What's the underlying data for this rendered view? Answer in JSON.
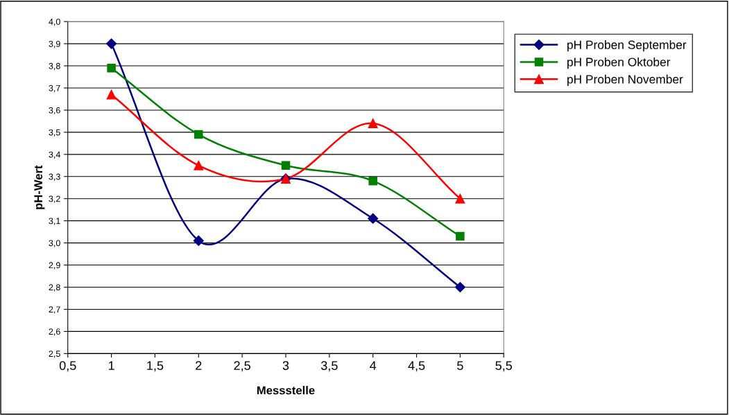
{
  "chart_data": {
    "type": "line",
    "xlabel": "Messstelle",
    "ylabel": "pH-Wert",
    "x": [
      1,
      2,
      3,
      4,
      5
    ],
    "series": [
      {
        "name": "pH Proben September",
        "color": "#000080",
        "marker": "diamond",
        "values": [
          3.9,
          3.01,
          3.29,
          3.11,
          2.8
        ]
      },
      {
        "name": "pH Proben Oktober",
        "color": "#008000",
        "marker": "square",
        "values": [
          3.79,
          3.49,
          3.35,
          3.28,
          3.03
        ]
      },
      {
        "name": "pH Proben November",
        "color": "#ff0000",
        "marker": "triangle",
        "values": [
          3.67,
          3.35,
          3.29,
          3.54,
          3.2
        ]
      }
    ],
    "xlim": [
      0.5,
      5.5
    ],
    "xticks": [
      {
        "value": 0.5,
        "label": "0,5"
      },
      1,
      {
        "value": 1.5,
        "label": "1,5"
      },
      2,
      {
        "value": 2.5,
        "label": "2,5"
      },
      3,
      {
        "value": 3.5,
        "label": "3,5"
      },
      4,
      {
        "value": 4.5,
        "label": "4,5"
      },
      5,
      {
        "value": 5.5,
        "label": "5,5"
      }
    ],
    "ylim": [
      2.5,
      4.0
    ],
    "yticks": [
      {
        "value": 2.5,
        "label": "2,5"
      },
      {
        "value": 2.6,
        "label": "2,6"
      },
      {
        "value": 2.7,
        "label": "2,7"
      },
      {
        "value": 2.8,
        "label": "2,8"
      },
      {
        "value": 2.9,
        "label": "2,9"
      },
      {
        "value": 3.0,
        "label": "3,0"
      },
      {
        "value": 3.1,
        "label": "3,1"
      },
      {
        "value": 3.2,
        "label": "3,2"
      },
      {
        "value": 3.3,
        "label": "3,3"
      },
      {
        "value": 3.4,
        "label": "3,4"
      },
      {
        "value": 3.5,
        "label": "3,5"
      },
      {
        "value": 3.6,
        "label": "3,6"
      },
      {
        "value": 3.7,
        "label": "3,7"
      },
      {
        "value": 3.8,
        "label": "3,8"
      },
      {
        "value": 3.9,
        "label": "3,9"
      },
      {
        "value": 4.0,
        "label": "4,0"
      }
    ],
    "grid": "y",
    "legend": "top right",
    "line_style": "solid"
  }
}
